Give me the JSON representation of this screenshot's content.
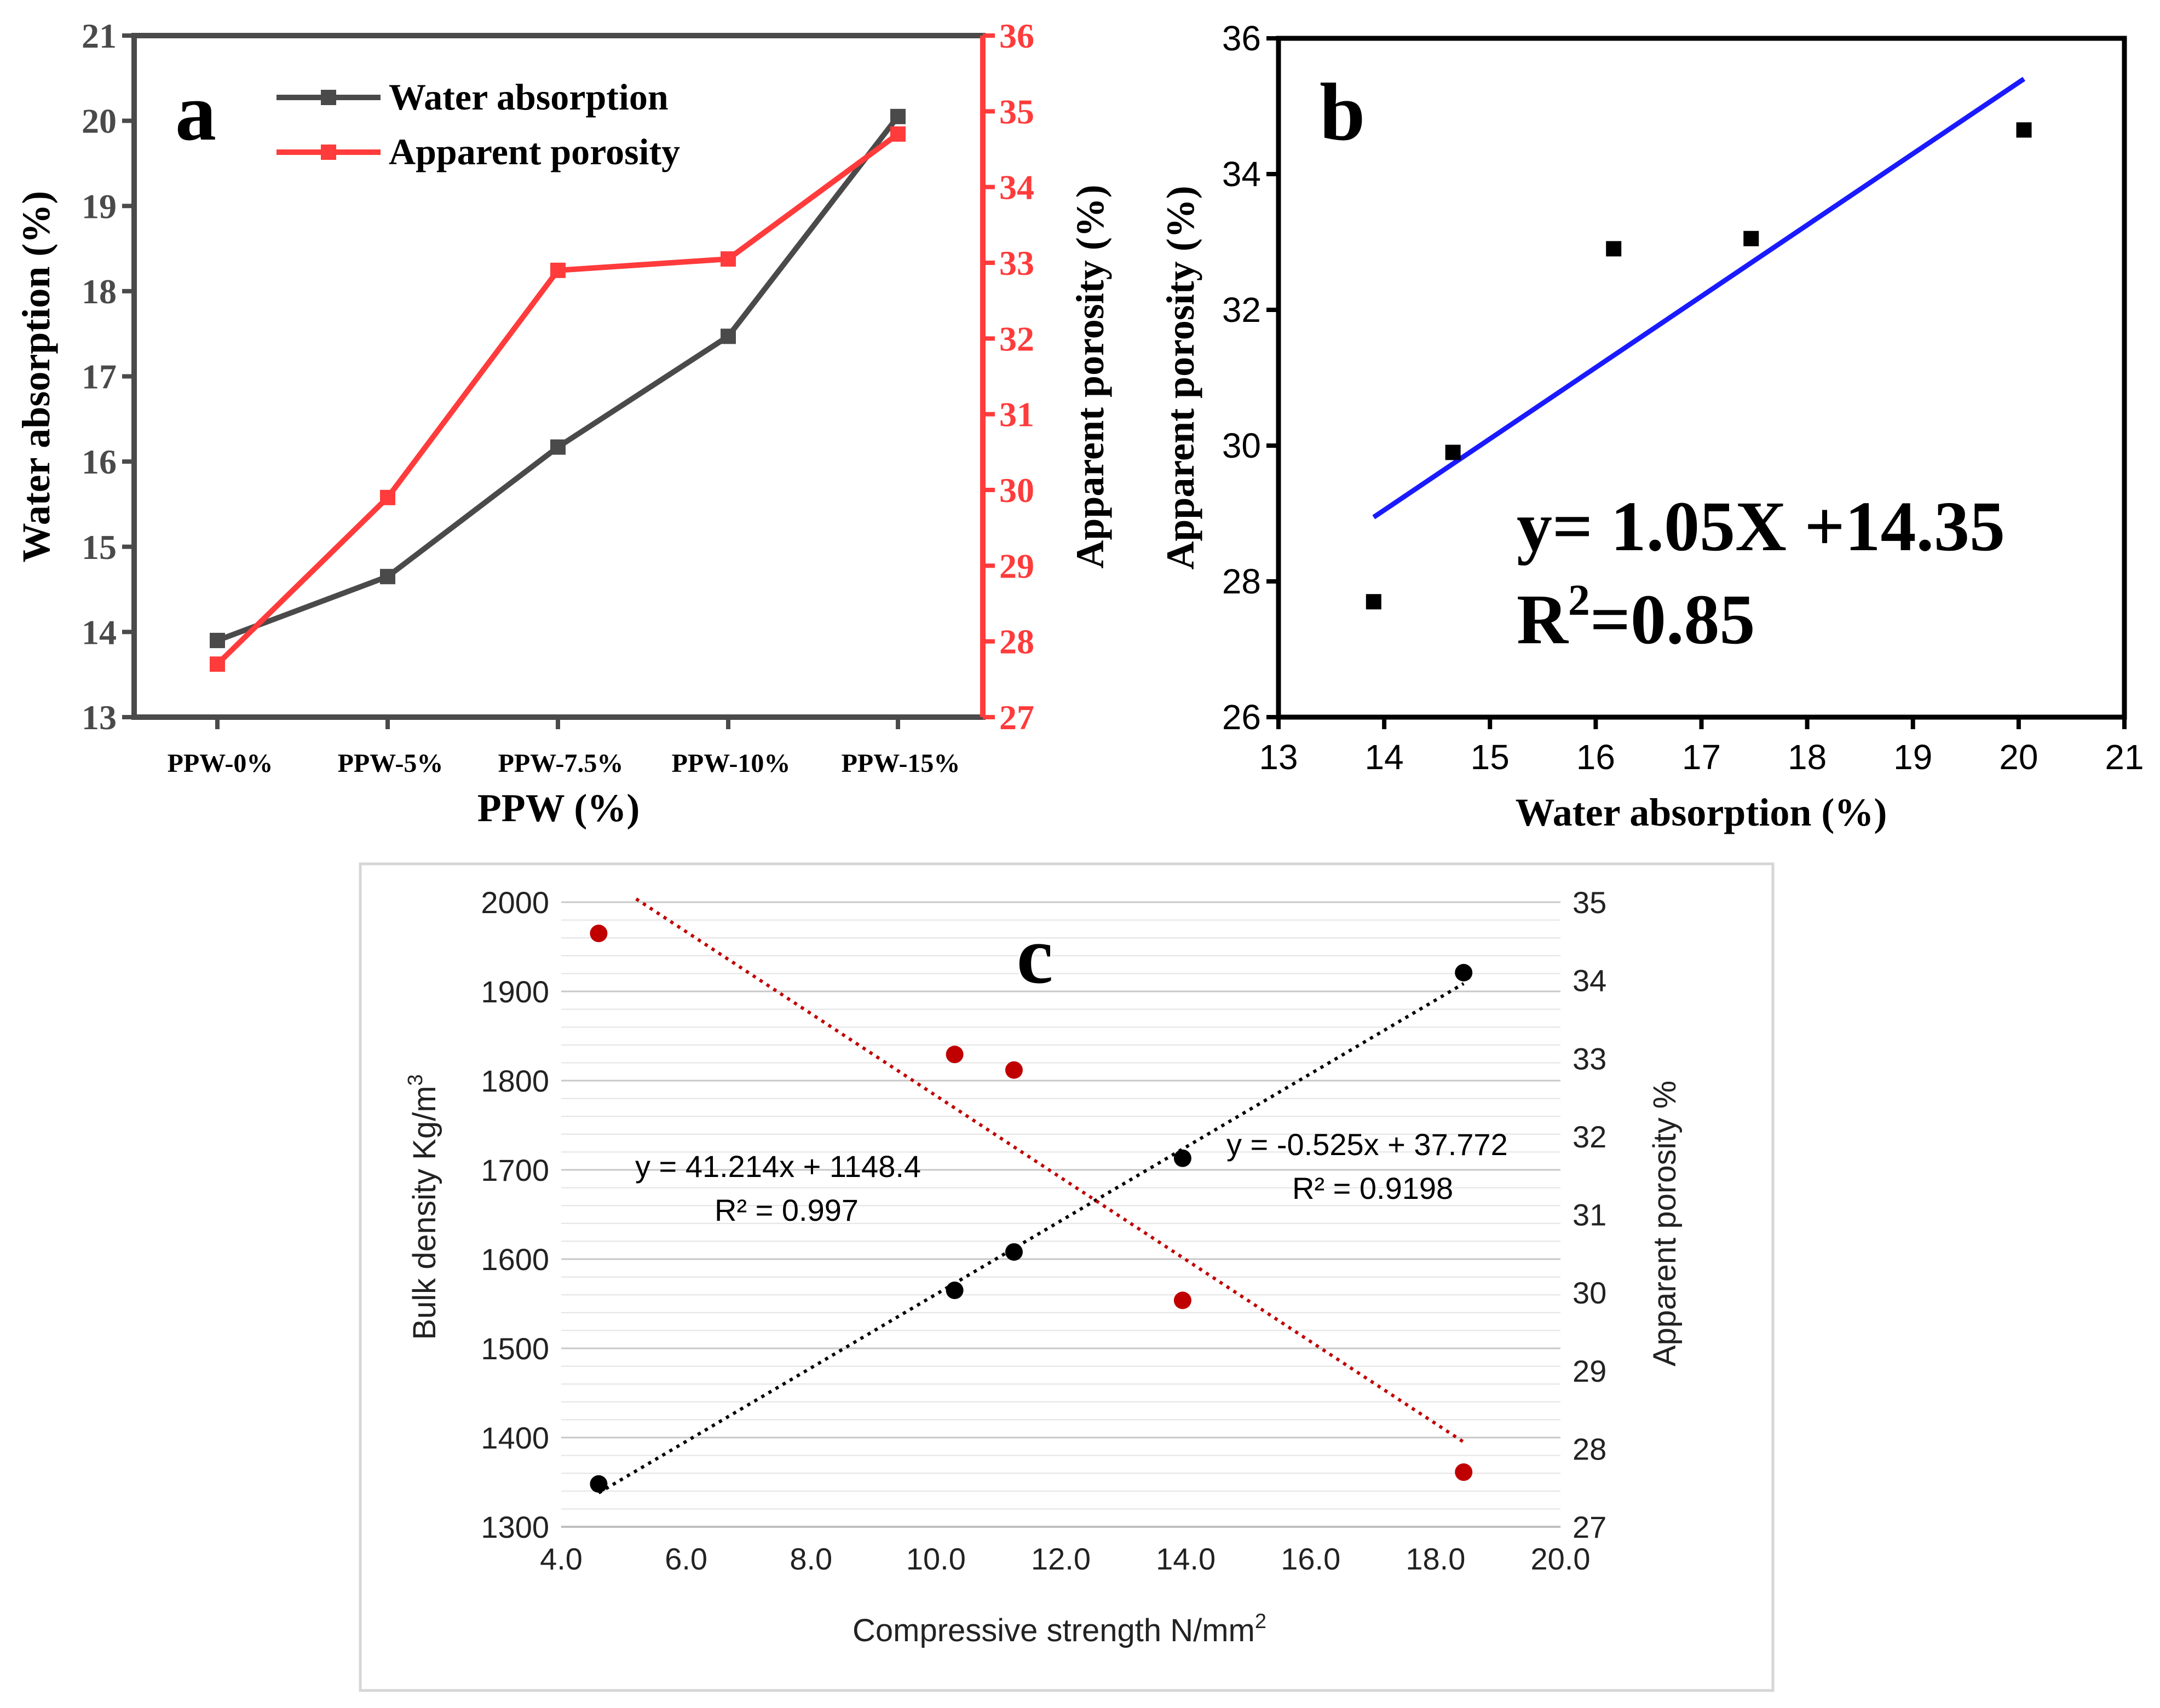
{
  "chart_data": [
    {
      "id": "a",
      "type": "line",
      "panel_label": "a",
      "title": "",
      "categories": [
        "PPW-0%",
        "PPW-5%",
        "PPW-7.5%",
        "PPW-10%",
        "PPW-15%"
      ],
      "xlabel": "PPW (%)",
      "ylabel": "Water absorption (%)",
      "y2label": "Apparent porosity (%)",
      "ylim": [
        13,
        21
      ],
      "y2lim": [
        27,
        36
      ],
      "yticks": [
        "13",
        "14",
        "15",
        "16",
        "17",
        "18",
        "19",
        "20",
        "21"
      ],
      "y2ticks": [
        "27",
        "28",
        "29",
        "30",
        "31",
        "32",
        "33",
        "34",
        "35",
        "36"
      ],
      "legend_position": "top-left",
      "series": [
        {
          "name": "Water absorption",
          "axis": "left",
          "color": "#4a4a4a",
          "values": [
            13.9,
            14.65,
            16.17,
            17.47,
            20.05
          ]
        },
        {
          "name": "Apparent porosity",
          "axis": "right",
          "color": "#ff3b3b",
          "values": [
            27.7,
            29.9,
            32.9,
            33.05,
            34.7
          ]
        }
      ]
    },
    {
      "id": "b",
      "type": "scatter",
      "panel_label": "b",
      "xlabel": "Water absorption (%)",
      "ylabel": "Apparent porosity (%)",
      "xlim": [
        13,
        21
      ],
      "ylim": [
        26,
        36
      ],
      "xticks": [
        "13",
        "14",
        "15",
        "16",
        "17",
        "18",
        "19",
        "20",
        "21"
      ],
      "yticks": [
        "26",
        "28",
        "30",
        "32",
        "34",
        "36"
      ],
      "series": [
        {
          "name": "data",
          "color": "#000000",
          "x": [
            13.9,
            14.65,
            16.17,
            17.47,
            20.05
          ],
          "y": [
            27.7,
            29.9,
            32.9,
            33.05,
            34.65
          ]
        }
      ],
      "trendline": {
        "slope": 1.05,
        "intercept": 14.35,
        "x_range": [
          13.9,
          20.05
        ],
        "color": "#1a1aff"
      },
      "annotation_eq": "y= 1.05X +14.35",
      "annotation_r2_prefix": "R",
      "annotation_r2_sup": "2",
      "annotation_r2_suffix": "=0.85"
    },
    {
      "id": "c",
      "type": "scatter",
      "panel_label": "c",
      "xlabel": "Compressive strength N/mm",
      "xlabel_sup": "2",
      "ylabel": "Bulk density Kg/m",
      "ylabel_sup": "3",
      "y2label": "Apparent porosity %",
      "xlim": [
        4,
        20
      ],
      "ylim": [
        1300,
        2000
      ],
      "y2lim": [
        27,
        35
      ],
      "xticks": [
        "4.0",
        "6.0",
        "8.0",
        "10.0",
        "12.0",
        "14.0",
        "16.0",
        "18.0",
        "20.0"
      ],
      "yticks": [
        "1300",
        "1400",
        "1500",
        "1600",
        "1700",
        "1800",
        "1900",
        "2000"
      ],
      "y2ticks": [
        "27",
        "28",
        "29",
        "30",
        "31",
        "32",
        "33",
        "34",
        "35"
      ],
      "series": [
        {
          "name": "Bulk density",
          "axis": "left",
          "color": "#000000",
          "x": [
            4.6,
            10.3,
            11.25,
            13.95,
            18.45
          ],
          "y": [
            1348,
            1565,
            1608,
            1713,
            1921
          ]
        },
        {
          "name": "Apparent porosity",
          "axis": "right",
          "color": "#c00000",
          "x": [
            4.6,
            10.3,
            11.25,
            13.95,
            18.45
          ],
          "y": [
            34.6,
            33.05,
            32.85,
            29.9,
            27.7
          ]
        }
      ],
      "trendlines": [
        {
          "axis": "left",
          "slope": 41.214,
          "intercept": 1148.4,
          "x_range": [
            4.6,
            18.45
          ],
          "color": "#000000"
        },
        {
          "axis": "right",
          "slope": -0.525,
          "intercept": 37.772,
          "x_range": [
            5.2,
            18.45
          ],
          "color": "#c00000"
        }
      ],
      "annotation_left_eq": "y = 41.214x + 1148.4",
      "annotation_left_r2": "R² = 0.997",
      "annotation_right_eq": "y = -0.525x + 37.772",
      "annotation_right_r2": "R² = 0.9198"
    }
  ]
}
